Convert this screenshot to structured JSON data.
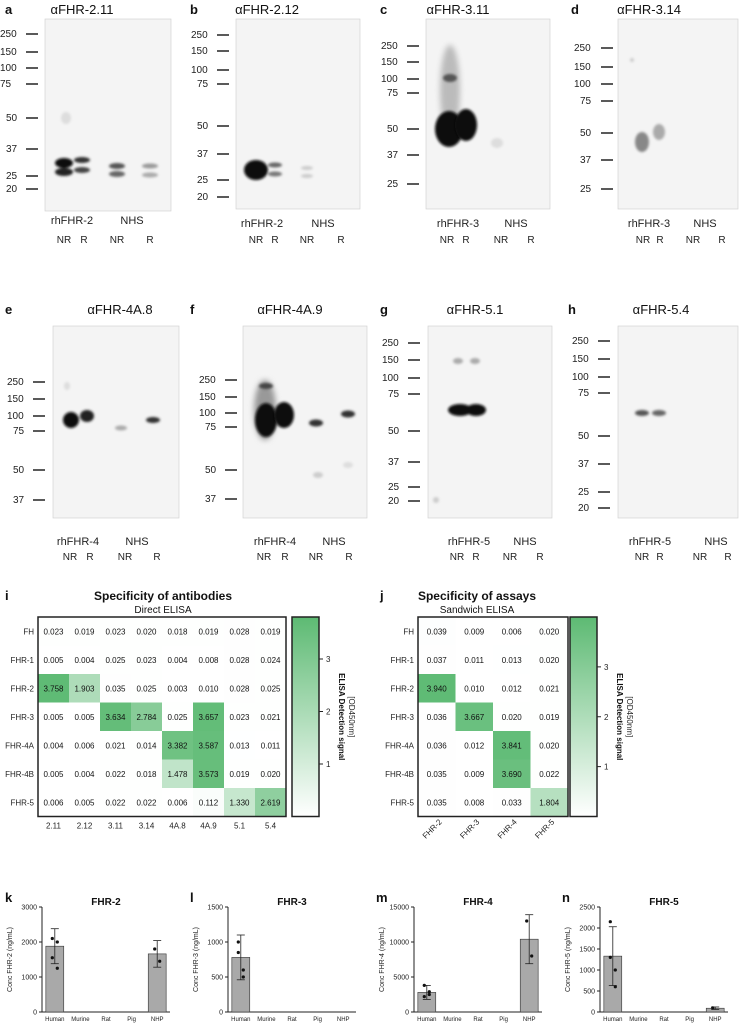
{
  "blots": [
    {
      "label": "a",
      "title": "αFHR-2.11",
      "mw": [
        "250",
        "150",
        "100",
        "75",
        "50",
        "37",
        "25",
        "20"
      ],
      "protein": "rhFHR-2",
      "nhs": "NHS",
      "lanes": [
        "NR",
        "R",
        "NR",
        "R"
      ]
    },
    {
      "label": "b",
      "title": "αFHR-2.12",
      "mw": [
        "250",
        "150",
        "100",
        "75",
        "50",
        "37",
        "25",
        "20"
      ],
      "protein": "rhFHR-2",
      "nhs": "NHS",
      "lanes": [
        "NR",
        "R",
        "NR",
        "R"
      ]
    },
    {
      "label": "c",
      "title": "αFHR-3.11",
      "mw": [
        "250",
        "150",
        "100",
        "75",
        "50",
        "37",
        "25"
      ],
      "protein": "rhFHR-3",
      "nhs": "NHS",
      "lanes": [
        "NR",
        "R",
        "NR",
        "R"
      ]
    },
    {
      "label": "d",
      "title": "αFHR-3.14",
      "mw": [
        "250",
        "150",
        "100",
        "75",
        "50",
        "37",
        "25"
      ],
      "protein": "rhFHR-3",
      "nhs": "NHS",
      "lanes": [
        "NR",
        "R",
        "NR",
        "R"
      ]
    },
    {
      "label": "e",
      "title": "αFHR-4A.8",
      "mw": [
        "250",
        "150",
        "100",
        "75",
        "50",
        "37"
      ],
      "protein": "rhFHR-4",
      "nhs": "NHS",
      "lanes": [
        "NR",
        "R",
        "NR",
        "R"
      ]
    },
    {
      "label": "f",
      "title": "αFHR-4A.9",
      "mw": [
        "250",
        "150",
        "100",
        "75",
        "50",
        "37"
      ],
      "protein": "rhFHR-4",
      "nhs": "NHS",
      "lanes": [
        "NR",
        "R",
        "NR",
        "R"
      ]
    },
    {
      "label": "g",
      "title": "αFHR-5.1",
      "mw": [
        "250",
        "150",
        "100",
        "75",
        "50",
        "37",
        "25",
        "20"
      ],
      "protein": "rhFHR-5",
      "nhs": "NHS",
      "lanes": [
        "NR",
        "R",
        "NR",
        "R"
      ]
    },
    {
      "label": "h",
      "title": "αFHR-5.4",
      "mw": [
        "250",
        "150",
        "100",
        "75",
        "50",
        "37",
        "25",
        "20"
      ],
      "protein": "rhFHR-5",
      "nhs": "NHS",
      "lanes": [
        "NR",
        "R",
        "NR",
        "R"
      ]
    }
  ],
  "chart_data": [
    {
      "type": "heatmap",
      "panel": "i",
      "title": "Specificity of antibodies",
      "subtitle": "Direct ELISA",
      "rows": [
        "FH",
        "FHR-1",
        "FHR-2",
        "FHR-3",
        "FHR-4A",
        "FHR-4B",
        "FHR-5"
      ],
      "cols": [
        "2.11",
        "2.12",
        "3.11",
        "3.14",
        "4A.8",
        "4A.9",
        "5.1",
        "5.4"
      ],
      "values": [
        [
          "0.023",
          "0.019",
          "0.023",
          "0.020",
          "0.018",
          "0.019",
          "0.028",
          "0.019"
        ],
        [
          "0.005",
          "0.004",
          "0.025",
          "0.023",
          "0.004",
          "0.008",
          "0.028",
          "0.024"
        ],
        [
          "3.758",
          "1.903",
          "0.035",
          "0.025",
          "0.003",
          "0.010",
          "0.028",
          "0.025"
        ],
        [
          "0.005",
          "0.005",
          "3.634",
          "2.784",
          "0.025",
          "3.657",
          "0.023",
          "0.021"
        ],
        [
          "0.004",
          "0.006",
          "0.021",
          "0.014",
          "3.382",
          "3.587",
          "0.013",
          "0.011"
        ],
        [
          "0.005",
          "0.004",
          "0.022",
          "0.018",
          "1.478",
          "3.573",
          "0.019",
          "0.020"
        ],
        [
          "0.006",
          "0.005",
          "0.022",
          "0.022",
          "0.006",
          "0.112",
          "1.330",
          "2.619"
        ]
      ],
      "colorbar": {
        "min": 0,
        "max": 3.8,
        "ticks": [
          "1",
          "2",
          "3"
        ],
        "title": "ELISA Detection signal",
        "unit": "[OD450nm]"
      }
    },
    {
      "type": "heatmap",
      "panel": "j",
      "title": "Specificity of assays",
      "subtitle": "Sandwich ELISA",
      "rows": [
        "FH",
        "FHR-1",
        "FHR-2",
        "FHR-3",
        "FHR-4A",
        "FHR-4B",
        "FHR-5"
      ],
      "cols": [
        "FHR-2",
        "FHR-3",
        "FHR-4",
        "FHR-5"
      ],
      "values": [
        [
          "0.039",
          "0.009",
          "0.006",
          "0.020"
        ],
        [
          "0.037",
          "0.011",
          "0.013",
          "0.020"
        ],
        [
          "3.940",
          "0.010",
          "0.012",
          "0.021"
        ],
        [
          "0.036",
          "3.667",
          "0.020",
          "0.019"
        ],
        [
          "0.036",
          "0.012",
          "3.841",
          "0.020"
        ],
        [
          "0.035",
          "0.009",
          "3.690",
          "0.022"
        ],
        [
          "0.035",
          "0.008",
          "0.033",
          "1.804"
        ]
      ],
      "colorbar": {
        "min": 0,
        "max": 4.0,
        "ticks": [
          "1",
          "2",
          "3"
        ],
        "title": "ELISA Detection signal",
        "unit": "[OD450nm]"
      }
    },
    {
      "type": "bar",
      "panel": "k",
      "title": "FHR-2",
      "categories": [
        "Human",
        "Murine",
        "Rat",
        "Pig",
        "NHP"
      ],
      "values": [
        1880,
        0,
        0,
        0,
        1660
      ],
      "errors": [
        500,
        0,
        0,
        0,
        380
      ],
      "points": [
        [
          1550,
          2000,
          2100,
          1250
        ],
        [],
        [],
        [],
        [
          1800,
          1450
        ]
      ],
      "ylabel": "Conc FHR-2 (ng/mL)",
      "ylim": [
        0,
        3000
      ],
      "yticks": [
        "0",
        "1000",
        "2000",
        "3000"
      ]
    },
    {
      "type": "bar",
      "panel": "l",
      "title": "FHR-3",
      "categories": [
        "Human",
        "Murine",
        "Rat",
        "Pig",
        "NHP"
      ],
      "values": [
        780,
        0,
        0,
        0,
        0
      ],
      "errors": [
        320,
        0,
        0,
        0,
        0
      ],
      "points": [
        [
          1000,
          600,
          850,
          500
        ],
        [],
        [],
        [],
        []
      ],
      "ylabel": "Conc FHR-3 (ng/mL)",
      "ylim": [
        0,
        1500
      ],
      "yticks": [
        "0",
        "500",
        "1000",
        "1500"
      ]
    },
    {
      "type": "bar",
      "panel": "m",
      "title": "FHR-4",
      "categories": [
        "Human",
        "Murine",
        "Rat",
        "Pig",
        "NHP"
      ],
      "values": [
        2800,
        0,
        0,
        0,
        10400
      ],
      "errors": [
        1000,
        0,
        0,
        0,
        3500
      ],
      "points": [
        [
          3800,
          2500,
          2200,
          2900
        ],
        [],
        [],
        [],
        [
          13000,
          8000
        ]
      ],
      "ylabel": "Conc FHR-4 (ng/mL)",
      "ylim": [
        0,
        15000
      ],
      "yticks": [
        "0",
        "5000",
        "10000",
        "15000"
      ]
    },
    {
      "type": "bar",
      "panel": "n",
      "title": "FHR-5",
      "categories": [
        "Human",
        "Murine",
        "Rat",
        "Pig",
        "NHP"
      ],
      "values": [
        1330,
        0,
        0,
        0,
        90
      ],
      "errors": [
        700,
        0,
        0,
        0,
        30
      ],
      "points": [
        [
          2150,
          1000,
          1300,
          600
        ],
        [],
        [],
        [],
        [
          100
        ]
      ],
      "ylabel": "Conc FHR-5 (ng/mL)",
      "ylim": [
        0,
        2500
      ],
      "yticks": [
        "0",
        "500",
        "1000",
        "1500",
        "2000",
        "2500"
      ]
    }
  ]
}
